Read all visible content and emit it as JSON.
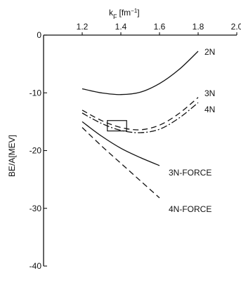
{
  "chart_data": {
    "type": "line",
    "title": "",
    "xlabel": "k",
    "xlabel_sub": "F",
    "xlabel_unit": "[fm",
    "xlabel_unit_exp": "−1",
    "xlabel_unit_close": "]",
    "ylabel": "BE/A[MEV]",
    "xlim": [
      1.0,
      2.0
    ],
    "ylim": [
      -40,
      0
    ],
    "x_ticks": [
      1.2,
      1.4,
      1.6,
      1.8,
      2.0
    ],
    "x_tick_labels": [
      "1.2",
      "1.4",
      "1.6",
      "1.8",
      "2.0"
    ],
    "y_ticks": [
      0,
      -10,
      -20,
      -30,
      -40
    ],
    "y_tick_labels": [
      "0",
      "-10",
      "-20",
      "-30",
      "-40"
    ],
    "grid": false,
    "legend": "none",
    "series": [
      {
        "name": "2N",
        "style": "solid",
        "x": [
          1.2,
          1.3,
          1.4,
          1.5,
          1.6,
          1.7,
          1.8
        ],
        "y": [
          -9.3,
          -10.0,
          -10.3,
          -9.9,
          -8.4,
          -6.0,
          -2.8
        ]
      },
      {
        "name": "3N",
        "style": "dashed",
        "x": [
          1.2,
          1.3,
          1.4,
          1.5,
          1.6,
          1.7,
          1.8
        ],
        "y": [
          -13.0,
          -14.8,
          -16.0,
          -16.4,
          -15.6,
          -13.6,
          -10.8
        ]
      },
      {
        "name": "4N",
        "style": "dashdot",
        "x": [
          1.2,
          1.3,
          1.4,
          1.5,
          1.6,
          1.7,
          1.8
        ],
        "y": [
          -13.5,
          -15.3,
          -16.5,
          -16.9,
          -16.3,
          -14.4,
          -11.7
        ]
      },
      {
        "name": "3N-FORCE",
        "style": "solid",
        "x": [
          1.2,
          1.3,
          1.4,
          1.5,
          1.6
        ],
        "y": [
          -15.0,
          -17.5,
          -19.6,
          -21.2,
          -22.6
        ]
      },
      {
        "name": "4N-FORCE",
        "style": "dashed",
        "x": [
          1.2,
          1.3,
          1.4,
          1.5,
          1.6
        ],
        "y": [
          -16.0,
          -19.2,
          -22.2,
          -25.2,
          -28.2
        ]
      }
    ],
    "annotations": [
      {
        "type": "box",
        "x": [
          1.33,
          1.43
        ],
        "y": [
          -16.6,
          -14.8
        ]
      }
    ]
  }
}
